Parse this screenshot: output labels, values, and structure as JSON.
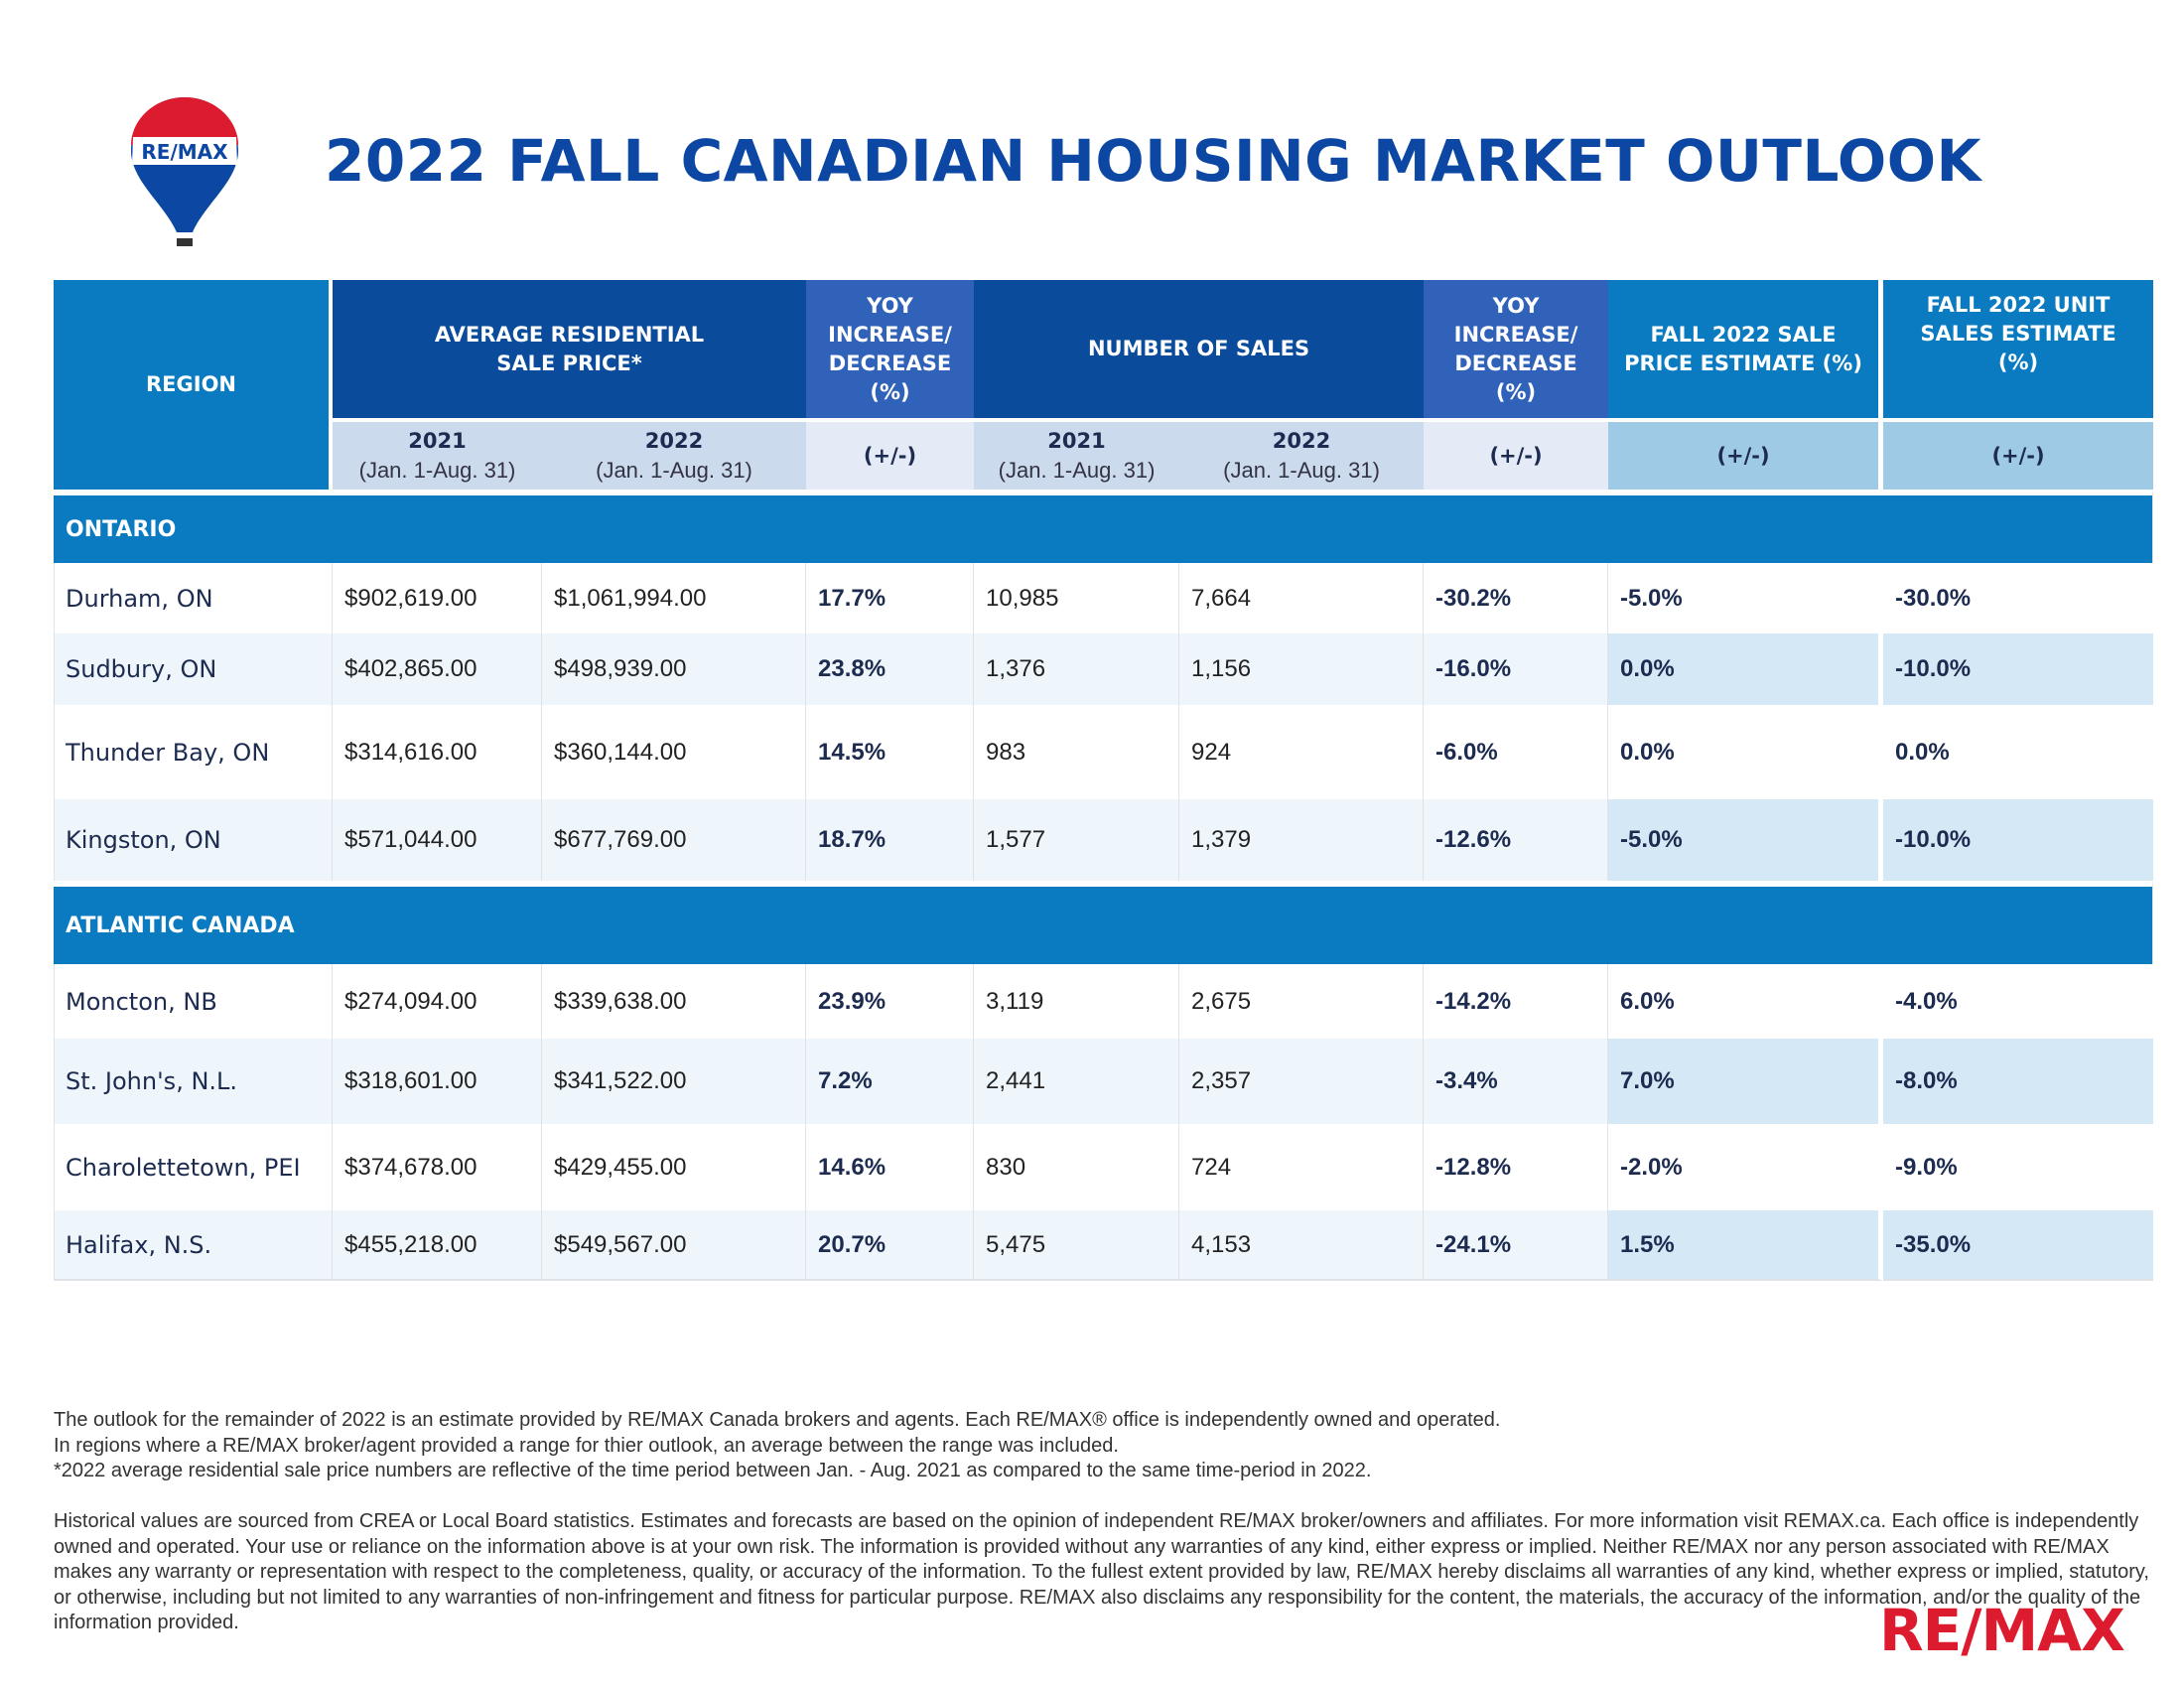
{
  "logo_text": "RE/MAX",
  "title": "2022 FALL CANADIAN HOUSING MARKET OUTLOOK",
  "header": {
    "region": "REGION",
    "avg_price": "AVERAGE RESIDENTIAL SALE PRICE*",
    "yoy": "YOY INCREASE/ DECREASE (%)",
    "num_sales": "NUMBER OF SALES",
    "fall_price": "FALL 2022 SALE PRICE ESTIMATE (%)",
    "fall_units": "FALL 2022 UNIT SALES ESTIMATE (%)",
    "y2021": "2021",
    "y2022": "2022",
    "period": "(Jan. 1-Aug. 31)",
    "pm": "(+/-)"
  },
  "sections": [
    {
      "name": "ONTARIO",
      "rows": [
        {
          "region": "Durham, ON",
          "p2021": "$902,619.00",
          "p2022": "$1,061,994.00",
          "pyoy": "17.7%",
          "s2021": "10,985",
          "s2022": "7,664",
          "syoy": "-30.2%",
          "fprice": "-5.0%",
          "funits": "-30.0%"
        },
        {
          "region": "Sudbury, ON",
          "p2021": "$402,865.00",
          "p2022": "$498,939.00",
          "pyoy": "23.8%",
          "s2021": "1,376",
          "s2022": "1,156",
          "syoy": "-16.0%",
          "fprice": "0.0%",
          "funits": "-10.0%"
        },
        {
          "region": "Thunder Bay, ON",
          "p2021": "$314,616.00",
          "p2022": "$360,144.00",
          "pyoy": "14.5%",
          "s2021": "983",
          "s2022": "924",
          "syoy": "-6.0%",
          "fprice": "0.0%",
          "funits": "0.0%"
        },
        {
          "region": "Kingston, ON",
          "p2021": "$571,044.00",
          "p2022": "$677,769.00",
          "pyoy": "18.7%",
          "s2021": "1,577",
          "s2022": "1,379",
          "syoy": "-12.6%",
          "fprice": "-5.0%",
          "funits": "-10.0%"
        }
      ]
    },
    {
      "name": "ATLANTIC CANADA",
      "rows": [
        {
          "region": "Moncton, NB",
          "p2021": "$274,094.00",
          "p2022": "$339,638.00",
          "pyoy": "23.9%",
          "s2021": "3,119",
          "s2022": "2,675",
          "syoy": "-14.2%",
          "fprice": "6.0%",
          "funits": "-4.0%"
        },
        {
          "region": "St. John's, N.L.",
          "p2021": "$318,601.00",
          "p2022": "$341,522.00",
          "pyoy": "7.2%",
          "s2021": "2,441",
          "s2022": "2,357",
          "syoy": "-3.4%",
          "fprice": "7.0%",
          "funits": "-8.0%"
        },
        {
          "region": "Charolettetown, PEI",
          "p2021": "$374,678.00",
          "p2022": "$429,455.00",
          "pyoy": "14.6%",
          "s2021": "830",
          "s2022": "724",
          "syoy": "-12.8%",
          "fprice": "-2.0%",
          "funits": "-9.0%"
        },
        {
          "region": "Halifax, N.S.",
          "p2021": "$455,218.00",
          "p2022": "$549,567.00",
          "pyoy": "20.7%",
          "s2021": "5,475",
          "s2022": "4,153",
          "syoy": "-24.1%",
          "fprice": "1.5%",
          "funits": "-35.0%"
        }
      ]
    }
  ],
  "footnotes": [
    "The outlook for the remainder of 2022 is an estimate provided by RE/MAX Canada brokers and agents. Each RE/MAX® office is independently owned and operated.",
    "In regions where a RE/MAX broker/agent provided a range for thier outlook, an average between the range was included.",
    "*2022 average residential sale price numbers are reflective of the time period between Jan. - Aug. 2021 as compared to the same time-period in 2022."
  ],
  "disclaimer": "Historical values are sourced from CREA or Local Board statistics. Estimates and forecasts are based on the opinion of independent RE/MAX broker/owners and affiliates. For more information visit REMAX.ca. Each office is independently owned and operated. Your use or reliance on the information above is at your own risk. The information is provided without any warranties of any kind, either express or implied. Neither RE/MAX nor any person associated with RE/MAX makes any warranty or representation with respect to the completeness, quality, or accuracy of the information. To the fullest extent provided by law, RE/MAX hereby disclaims all warranties of any kind, whether express or implied, statutory, or otherwise, including but not limited to any warranties of non-infringement and fitness for particular purpose. RE/MAX also disclaims any responsibility for the content, the materials, the accuracy of the information, and/or the quality of the information provided.",
  "brand_logo": "RE/MAX",
  "colors": {
    "title": "#0b47a3",
    "dark_header": "#0a4b9c",
    "band": "#0a7bc1",
    "brand_red": "#dc1c2e"
  }
}
